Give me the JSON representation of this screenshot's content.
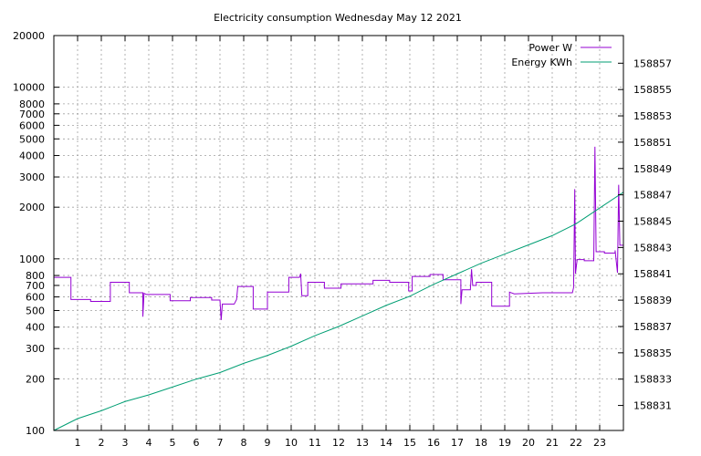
{
  "chart_data": {
    "type": "line",
    "title": "Electricity consumption Wednesday May 12 2021",
    "xlabel": "",
    "ylabel": "",
    "x_ticks": [
      "1",
      "2",
      "3",
      "4",
      "5",
      "6",
      "7",
      "8",
      "9",
      "10",
      "11",
      "12",
      "13",
      "14",
      "15",
      "16",
      "17",
      "18",
      "19",
      "20",
      "21",
      "22",
      "23"
    ],
    "xlim": [
      0,
      24
    ],
    "y_left": {
      "scale": "log",
      "lim": [
        100,
        20000
      ],
      "ticks": [
        100,
        200,
        300,
        400,
        500,
        600,
        700,
        800,
        1000,
        2000,
        3000,
        4000,
        5000,
        6000,
        7000,
        8000,
        10000,
        20000
      ]
    },
    "y_right": {
      "scale": "linear",
      "lim": [
        158829.1,
        158859.1
      ],
      "ticks": [
        158831,
        158833,
        158835,
        158837,
        158839,
        158841,
        158843,
        158845,
        158847,
        158849,
        158851,
        158853,
        158855,
        158857
      ]
    },
    "grid": true,
    "legend_position": "top-right",
    "series": [
      {
        "name": "Power W",
        "axis": "left",
        "color": "#9400d3",
        "style": "step",
        "points": [
          [
            0.0,
            780
          ],
          [
            0.72,
            780
          ],
          [
            0.72,
            580
          ],
          [
            1.55,
            580
          ],
          [
            1.55,
            565
          ],
          [
            2.38,
            565
          ],
          [
            2.38,
            730
          ],
          [
            3.18,
            730
          ],
          [
            3.18,
            635
          ],
          [
            3.75,
            635
          ],
          [
            3.75,
            460
          ],
          [
            3.8,
            630
          ],
          [
            3.9,
            620
          ],
          [
            4.9,
            620
          ],
          [
            4.9,
            570
          ],
          [
            5.75,
            570
          ],
          [
            5.75,
            595
          ],
          [
            6.65,
            595
          ],
          [
            6.65,
            575
          ],
          [
            7.0,
            575
          ],
          [
            7.05,
            440
          ],
          [
            7.1,
            545
          ],
          [
            7.6,
            545
          ],
          [
            7.7,
            580
          ],
          [
            7.75,
            690
          ],
          [
            8.4,
            690
          ],
          [
            8.4,
            510
          ],
          [
            9.0,
            510
          ],
          [
            9.0,
            640
          ],
          [
            9.9,
            640
          ],
          [
            9.9,
            780
          ],
          [
            10.35,
            780
          ],
          [
            10.4,
            820
          ],
          [
            10.45,
            610
          ],
          [
            10.7,
            610
          ],
          [
            10.7,
            730
          ],
          [
            11.4,
            730
          ],
          [
            11.4,
            675
          ],
          [
            12.1,
            675
          ],
          [
            12.1,
            715
          ],
          [
            13.45,
            715
          ],
          [
            13.45,
            750
          ],
          [
            14.15,
            750
          ],
          [
            14.15,
            730
          ],
          [
            14.95,
            730
          ],
          [
            14.95,
            650
          ],
          [
            15.1,
            650
          ],
          [
            15.1,
            790
          ],
          [
            15.85,
            790
          ],
          [
            15.85,
            810
          ],
          [
            16.4,
            810
          ],
          [
            16.4,
            755
          ],
          [
            17.15,
            755
          ],
          [
            17.15,
            545
          ],
          [
            17.2,
            660
          ],
          [
            17.55,
            660
          ],
          [
            17.6,
            870
          ],
          [
            17.65,
            700
          ],
          [
            17.8,
            700
          ],
          [
            17.8,
            730
          ],
          [
            18.45,
            730
          ],
          [
            18.45,
            530
          ],
          [
            19.2,
            530
          ],
          [
            19.2,
            640
          ],
          [
            19.4,
            625
          ],
          [
            20.6,
            635
          ],
          [
            21.85,
            635
          ],
          [
            21.9,
            680
          ],
          [
            21.95,
            2550
          ],
          [
            21.98,
            820
          ],
          [
            22.05,
            990
          ],
          [
            22.35,
            990
          ],
          [
            22.35,
            975
          ],
          [
            22.75,
            975
          ],
          [
            22.8,
            4500
          ],
          [
            22.85,
            1100
          ],
          [
            23.2,
            1100
          ],
          [
            23.2,
            1080
          ],
          [
            23.65,
            1080
          ],
          [
            23.65,
            1120
          ],
          [
            23.75,
            830
          ],
          [
            23.8,
            2700
          ],
          [
            23.85,
            1200
          ],
          [
            24.0,
            1200
          ]
        ]
      },
      {
        "name": "Energy KWh",
        "axis": "right",
        "color": "#009e73",
        "style": "line",
        "points": [
          [
            0.0,
            158829.1
          ],
          [
            1.0,
            158830.0
          ],
          [
            2.0,
            158830.6
          ],
          [
            3.0,
            158831.3
          ],
          [
            4.0,
            158831.8
          ],
          [
            5.0,
            158832.4
          ],
          [
            6.0,
            158833.0
          ],
          [
            7.0,
            158833.5
          ],
          [
            8.0,
            158834.2
          ],
          [
            9.0,
            158834.8
          ],
          [
            10.0,
            158835.5
          ],
          [
            11.0,
            158836.3
          ],
          [
            12.0,
            158837.0
          ],
          [
            13.0,
            158837.8
          ],
          [
            14.0,
            158838.6
          ],
          [
            15.0,
            158839.3
          ],
          [
            16.0,
            158840.2
          ],
          [
            17.0,
            158841.0
          ],
          [
            18.0,
            158841.8
          ],
          [
            19.0,
            158842.5
          ],
          [
            20.0,
            158843.2
          ],
          [
            21.0,
            158843.9
          ],
          [
            22.0,
            158844.8
          ],
          [
            23.0,
            158846.0
          ],
          [
            24.0,
            158847.2
          ]
        ]
      }
    ]
  }
}
